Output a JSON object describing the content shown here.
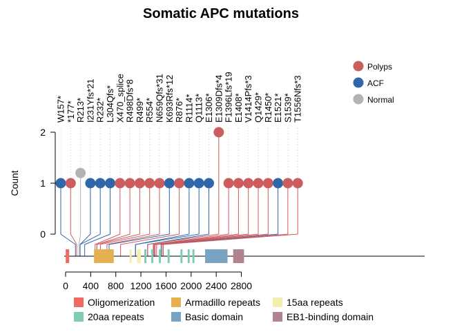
{
  "chart_data": {
    "type": "scatter",
    "subtype": "lollipop",
    "title": "Somatic APC mutations",
    "xlabel": "",
    "ylabel": "Count",
    "xlim": [
      0,
      2843
    ],
    "xticks": [
      0,
      400,
      800,
      1200,
      1600,
      2000,
      2400,
      2800
    ],
    "ylim": [
      0,
      2
    ],
    "yticks": [
      0,
      1,
      2
    ],
    "grid": false,
    "legend_position": "top-right",
    "colors": {
      "Polyps": "#cd5c5f",
      "ACF": "#2f67a9",
      "Normal": "#b3b3b3"
    },
    "series": [
      {
        "name": "Polyps"
      },
      {
        "name": "ACF"
      },
      {
        "name": "Normal"
      }
    ],
    "mutations": [
      {
        "label": "W157*",
        "position": 157,
        "count": 1,
        "group": "ACF"
      },
      {
        "label": "*177*",
        "position": 177,
        "count": 1,
        "group": "Polyps"
      },
      {
        "label": "R213*",
        "position": 213,
        "count": 1,
        "group": "Normal",
        "display_y": 1.2
      },
      {
        "label": "I231Yfs*21",
        "position": 231,
        "count": 1,
        "group": "ACF"
      },
      {
        "label": "R232*",
        "position": 232,
        "count": 1,
        "group": "ACF"
      },
      {
        "label": "L304Qfs*",
        "position": 304,
        "count": 1,
        "group": "ACF"
      },
      {
        "label": "X470_splice",
        "position": 470,
        "count": 1,
        "group": "Polyps"
      },
      {
        "label": "R498Dfs*8",
        "position": 498,
        "count": 1,
        "group": "Polyps"
      },
      {
        "label": "R499*",
        "position": 499,
        "count": 1,
        "group": "Polyps"
      },
      {
        "label": "R554*",
        "position": 554,
        "count": 1,
        "group": "Polyps"
      },
      {
        "label": "N659Qfs*31",
        "position": 659,
        "count": 1,
        "group": "Polyps"
      },
      {
        "label": "K693Rfs*12",
        "position": 693,
        "count": 1,
        "group": "ACF"
      },
      {
        "label": "R876*",
        "position": 876,
        "count": 1,
        "group": "Polyps"
      },
      {
        "label": "R1114*",
        "position": 1114,
        "count": 1,
        "group": "ACF"
      },
      {
        "label": "Q1113*",
        "position": 1113,
        "count": 1,
        "group": "ACF"
      },
      {
        "label": "E1306*",
        "position": 1306,
        "count": 1,
        "group": "ACF"
      },
      {
        "label": "E1309Dfs*4",
        "position": 1309,
        "count": 2,
        "group": "Polyps"
      },
      {
        "label": "F1396Lfs*19",
        "position": 1396,
        "count": 1,
        "group": "Polyps"
      },
      {
        "label": "E1408*",
        "position": 1408,
        "count": 1,
        "group": "Polyps"
      },
      {
        "label": "V1414Pfs*3",
        "position": 1414,
        "count": 1,
        "group": "Polyps"
      },
      {
        "label": "Q1429*",
        "position": 1429,
        "count": 1,
        "group": "Polyps"
      },
      {
        "label": "R1450*",
        "position": 1450,
        "count": 1,
        "group": "Polyps"
      },
      {
        "label": "E1521*",
        "position": 1521,
        "count": 1,
        "group": "ACF"
      },
      {
        "label": "S1539*",
        "position": 1539,
        "count": 1,
        "group": "Polyps"
      },
      {
        "label": "T1556Nfs*3",
        "position": 1556,
        "count": 1,
        "group": "Polyps"
      }
    ],
    "domains": [
      {
        "name": "Oligomerization",
        "color": "#ef6a62",
        "start": 2,
        "end": 57
      },
      {
        "name": "Armadillo repeats",
        "color": "#e5b050",
        "start": 453,
        "end": 767
      },
      {
        "name": "Armadillo repeats",
        "color": "#e5b050",
        "start": 664,
        "end": 667
      },
      {
        "name": "15aa repeats",
        "color": "#f2eeab",
        "start": 1020,
        "end": 1035
      },
      {
        "name": "15aa repeats",
        "color": "#f2eeab",
        "start": 1140,
        "end": 1200
      },
      {
        "name": "20aa repeats",
        "color": "#7ecbb6",
        "start": 1255,
        "end": 1275
      },
      {
        "name": "20aa repeats",
        "color": "#7ecbb6",
        "start": 1365,
        "end": 1385
      },
      {
        "name": "20aa repeats",
        "color": "#7ecbb6",
        "start": 1485,
        "end": 1505
      },
      {
        "name": "20aa repeats",
        "color": "#7ecbb6",
        "start": 1625,
        "end": 1645
      },
      {
        "name": "20aa repeats",
        "color": "#7ecbb6",
        "start": 1830,
        "end": 1850
      },
      {
        "name": "20aa repeats",
        "color": "#7ecbb6",
        "start": 1945,
        "end": 1965
      },
      {
        "name": "20aa repeats",
        "color": "#7ecbb6",
        "start": 2020,
        "end": 2040
      },
      {
        "name": "Basic domain",
        "color": "#7aa3c2",
        "start": 2223,
        "end": 2580
      },
      {
        "name": "EB1-binding domain",
        "color": "#b0838e",
        "start": 2670,
        "end": 2843
      }
    ],
    "domain_legend": [
      {
        "name": "Oligomerization",
        "color": "#ef6a62"
      },
      {
        "name": "Armadillo repeats",
        "color": "#e5b050"
      },
      {
        "name": "15aa repeats",
        "color": "#f2eeab"
      },
      {
        "name": "20aa repeats",
        "color": "#7ecbb6"
      },
      {
        "name": "Basic domain",
        "color": "#7aa3c2"
      },
      {
        "name": "EB1-binding domain",
        "color": "#b0838e"
      }
    ]
  }
}
